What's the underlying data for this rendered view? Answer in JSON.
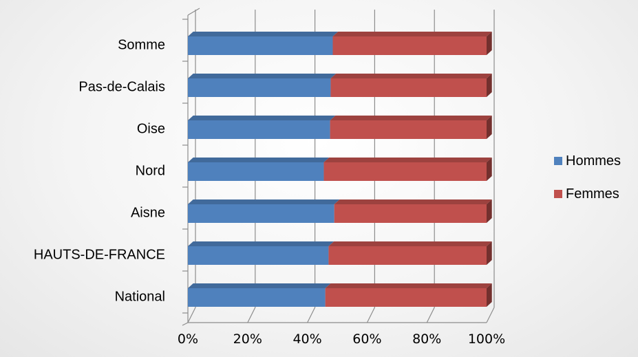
{
  "chart_data": {
    "type": "bar",
    "orientation": "horizontal",
    "stacked": "percent",
    "three_d": true,
    "categories": [
      "Somme",
      "Pas-de-Calais",
      "Oise",
      "Nord",
      "Aisne",
      "HAUTS-DE-FRANCE",
      "National"
    ],
    "series": [
      {
        "name": "Hommes",
        "values": [
          48.5,
          47.8,
          47.6,
          45.5,
          49.0,
          47.1,
          46.0
        ],
        "color": "#4f81bd"
      },
      {
        "name": "Femmes",
        "values": [
          51.5,
          52.2,
          52.4,
          54.5,
          51.0,
          52.9,
          54.0
        ],
        "color": "#c0504d"
      }
    ],
    "xticks": [
      "0%",
      "20%",
      "40%",
      "60%",
      "80%",
      "100%"
    ],
    "xlim": [
      0,
      100
    ],
    "grid": true,
    "legend": "right"
  }
}
